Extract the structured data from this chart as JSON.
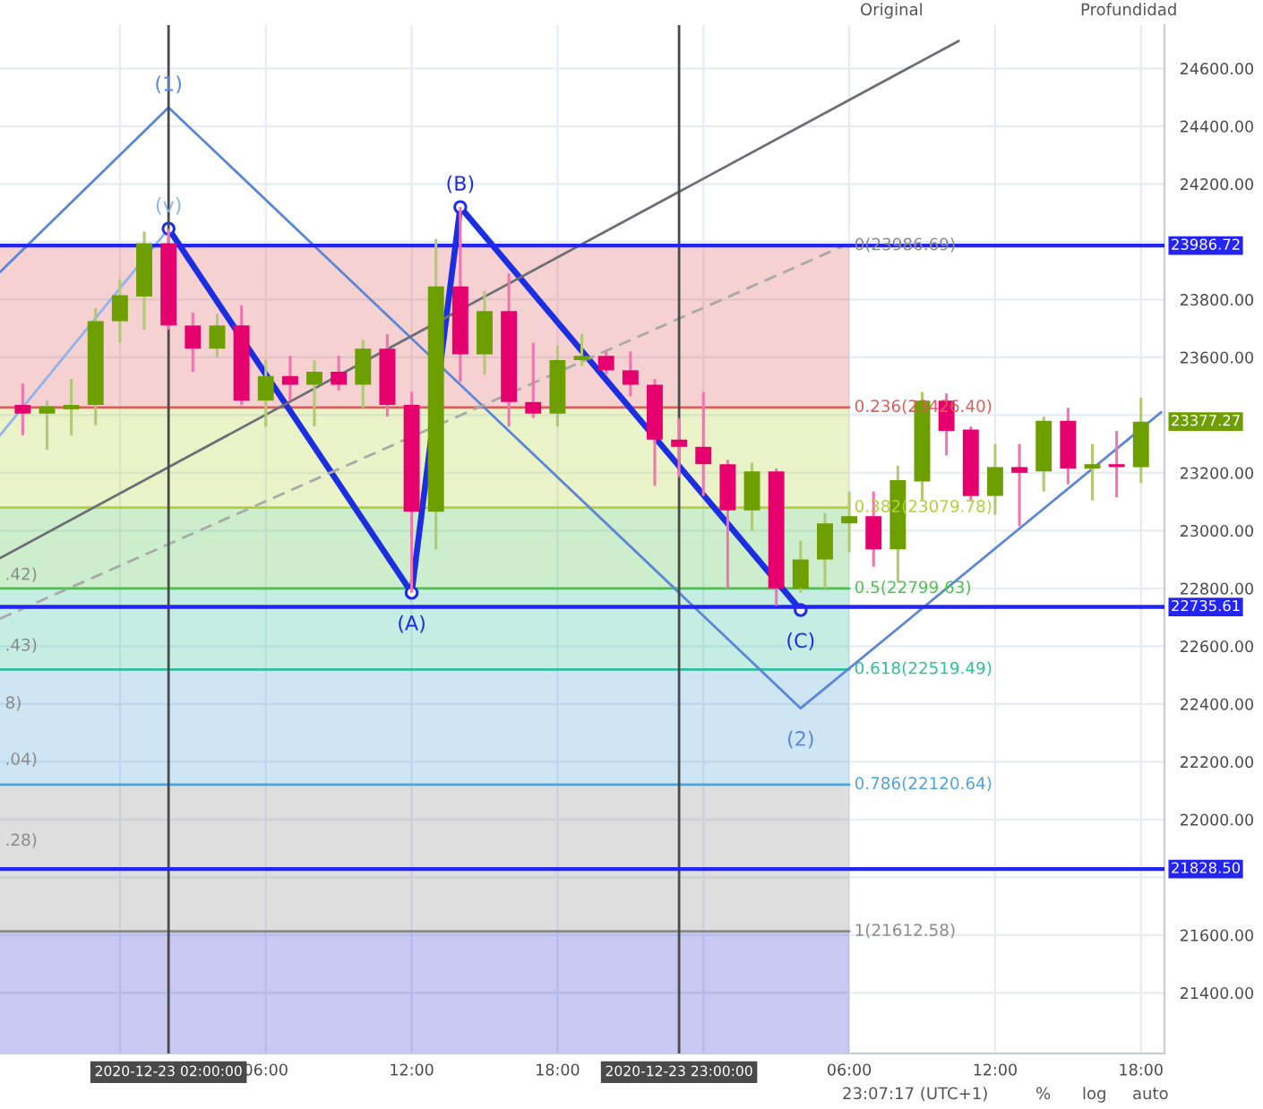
{
  "chart_data": {
    "type": "candlestick",
    "x": [
      "2020-12-22T20:00",
      "2020-12-22T21:00",
      "2020-12-22T22:00",
      "2020-12-22T23:00",
      "2020-12-23T00:00",
      "2020-12-23T01:00",
      "2020-12-23T02:00",
      "2020-12-23T03:00",
      "2020-12-23T04:00",
      "2020-12-23T05:00",
      "2020-12-23T06:00",
      "2020-12-23T07:00",
      "2020-12-23T08:00",
      "2020-12-23T09:00",
      "2020-12-23T10:00",
      "2020-12-23T11:00",
      "2020-12-23T12:00",
      "2020-12-23T13:00",
      "2020-12-23T14:00",
      "2020-12-23T15:00",
      "2020-12-23T16:00",
      "2020-12-23T17:00",
      "2020-12-23T18:00",
      "2020-12-23T19:00",
      "2020-12-23T20:00",
      "2020-12-23T21:00",
      "2020-12-23T22:00",
      "2020-12-23T23:00",
      "2020-12-24T00:00",
      "2020-12-24T01:00",
      "2020-12-24T02:00",
      "2020-12-24T03:00",
      "2020-12-24T04:00",
      "2020-12-24T05:00",
      "2020-12-24T06:00",
      "2020-12-24T07:00",
      "2020-12-24T08:00",
      "2020-12-24T09:00",
      "2020-12-24T10:00",
      "2020-12-24T11:00",
      "2020-12-24T12:00",
      "2020-12-24T13:00",
      "2020-12-24T14:00",
      "2020-12-24T15:00",
      "2020-12-24T16:00",
      "2020-12-24T17:00",
      "2020-12-24T18:00"
    ],
    "ohlc": [
      [
        23435,
        23510,
        23330,
        23405
      ],
      [
        23405,
        23450,
        23280,
        23430
      ],
      [
        23420,
        23525,
        23330,
        23435
      ],
      [
        23435,
        23770,
        23365,
        23725
      ],
      [
        23725,
        23870,
        23650,
        23815
      ],
      [
        23810,
        24035,
        23695,
        23995
      ],
      [
        23995,
        24045,
        23695,
        23710
      ],
      [
        23710,
        23755,
        23550,
        23630
      ],
      [
        23630,
        23750,
        23600,
        23710
      ],
      [
        23710,
        23780,
        23435,
        23450
      ],
      [
        23450,
        23590,
        23360,
        23535
      ],
      [
        23535,
        23605,
        23450,
        23505
      ],
      [
        23505,
        23590,
        23360,
        23550
      ],
      [
        23550,
        23605,
        23485,
        23505
      ],
      [
        23505,
        23660,
        23425,
        23630
      ],
      [
        23630,
        23680,
        23395,
        23435
      ],
      [
        23435,
        23480,
        22785,
        23065
      ],
      [
        23065,
        24010,
        22935,
        23845
      ],
      [
        23845,
        24120,
        23515,
        23610
      ],
      [
        23610,
        23830,
        23540,
        23760
      ],
      [
        23760,
        23890,
        23360,
        23445
      ],
      [
        23445,
        23650,
        23390,
        23405
      ],
      [
        23405,
        23640,
        23360,
        23590
      ],
      [
        23590,
        23680,
        23570,
        23605
      ],
      [
        23605,
        23620,
        23540,
        23555
      ],
      [
        23555,
        23620,
        23465,
        23505
      ],
      [
        23505,
        23525,
        23155,
        23315
      ],
      [
        23315,
        23390,
        23185,
        23290
      ],
      [
        23290,
        23480,
        23120,
        23230
      ],
      [
        23230,
        23245,
        22800,
        23070
      ],
      [
        23070,
        23235,
        23000,
        23205
      ],
      [
        23205,
        23215,
        22740,
        22800
      ],
      [
        22800,
        22965,
        22785,
        22900
      ],
      [
        22900,
        23060,
        22800,
        23025
      ],
      [
        23025,
        23135,
        22925,
        23050
      ],
      [
        23050,
        23135,
        22875,
        22935
      ],
      [
        22935,
        23225,
        22820,
        23175
      ],
      [
        23170,
        23480,
        23105,
        23450
      ],
      [
        23450,
        23475,
        23260,
        23345
      ],
      [
        23350,
        23360,
        23105,
        23120
      ],
      [
        23120,
        23300,
        23055,
        23220
      ],
      [
        23220,
        23300,
        23015,
        23200
      ],
      [
        23205,
        23395,
        23135,
        23380
      ],
      [
        23380,
        23425,
        23160,
        23215
      ],
      [
        23215,
        23300,
        23105,
        23230
      ],
      [
        23230,
        23345,
        23115,
        23220
      ],
      [
        23220,
        23460,
        23165,
        23377.27
      ]
    ],
    "colors": [
      "#e6006e",
      "#6e9f00",
      "#6e9f00",
      "#6e9f00",
      "#6e9f00",
      "#6e9f00",
      "#e6006e",
      "#e6006e",
      "#6e9f00",
      "#e6006e",
      "#6e9f00",
      "#e6006e",
      "#6e9f00",
      "#e6006e",
      "#6e9f00",
      "#e6006e",
      "#e6006e",
      "#6e9f00",
      "#e6006e",
      "#6e9f00",
      "#e6006e",
      "#e6006e",
      "#6e9f00",
      "#6e9f00",
      "#e6006e",
      "#e6006e",
      "#e6006e",
      "#e6006e",
      "#e6006e",
      "#e6006e",
      "#6e9f00",
      "#e6006e",
      "#6e9f00",
      "#6e9f00",
      "#6e9f00",
      "#e6006e",
      "#6e9f00",
      "#6e9f00",
      "#e6006e",
      "#e6006e",
      "#6e9f00",
      "#e6006e",
      "#6e9f00",
      "#e6006e",
      "#6e9f00",
      "#e6006e",
      "#6e9f00"
    ],
    "series": [
      {
        "type": "line",
        "x": [
          "2020-12-22T19:04",
          "2020-12-23T02:00"
        ],
        "values": [
          23330,
          24045
        ],
        "color": "#8fb4ec",
        "line_style": "solid",
        "marker": "none"
      },
      {
        "type": "line",
        "x": [
          "2020-12-22T19:04",
          "2020-12-23T02:00",
          "2020-12-24T04:00",
          "2020-12-24T18:50"
        ],
        "values": [
          23895,
          24465,
          22385,
          23410
        ],
        "color": "#5b86d6",
        "line_style": "solid",
        "marker": "none"
      },
      {
        "type": "line",
        "x": [
          "2020-12-23T02:00",
          "2020-12-23T12:00",
          "2020-12-23T14:00",
          "2020-12-24T04:00"
        ],
        "values": [
          24045,
          22785,
          24120,
          22725
        ],
        "color": "#1c2fe0",
        "line_style": "solid",
        "marker": "circle"
      },
      {
        "type": "line",
        "x": [
          "2020-12-22T19:04",
          "2020-12-24T10:30"
        ],
        "values": [
          22905,
          24695
        ],
        "color": "#6b6f75",
        "line_style": "solid",
        "marker": "none"
      },
      {
        "type": "line",
        "x": [
          "2020-12-22T19:04",
          "2020-12-24T05:45"
        ],
        "values": [
          22695,
          23985
        ],
        "color": "#a8a8a8",
        "line_style": "dashed",
        "marker": "none"
      }
    ],
    "xlim": [
      "2020-12-22T19:04",
      "2020-12-24T18:58"
    ],
    "xticks": [
      {
        "value": "2020-12-23T00:00",
        "label": null
      },
      {
        "value": "2020-12-23T06:00",
        "label": "06:00"
      },
      {
        "value": "2020-12-23T12:00",
        "label": "12:00"
      },
      {
        "value": "2020-12-23T18:00",
        "label": "18:00"
      },
      {
        "value": "2020-12-24T00:00",
        "label": null
      },
      {
        "value": "2020-12-24T06:00",
        "label": "06:00"
      },
      {
        "value": "2020-12-24T12:00",
        "label": "12:00"
      },
      {
        "value": "2020-12-24T18:00",
        "label": "18:00"
      }
    ],
    "ylim": [
      21190,
      24750
    ],
    "yticks": [
      {
        "value": 21400,
        "label": "21400.00"
      },
      {
        "value": 21600,
        "label": "21600.00"
      },
      {
        "value": 21800,
        "label": null
      },
      {
        "value": 22000,
        "label": "22000.00"
      },
      {
        "value": 22200,
        "label": "22200.00"
      },
      {
        "value": 22400,
        "label": "22400.00"
      },
      {
        "value": 22600,
        "label": "22600.00"
      },
      {
        "value": 22800,
        "label": "22800.00"
      },
      {
        "value": 23000,
        "label": "23000.00"
      },
      {
        "value": 23200,
        "label": "23200.00"
      },
      {
        "value": 23400,
        "label": null
      },
      {
        "value": 23600,
        "label": "23600.00"
      },
      {
        "value": 23800,
        "label": "23800.00"
      },
      {
        "value": 24000,
        "label": null
      },
      {
        "value": 24200,
        "label": "24200.00"
      },
      {
        "value": 24400,
        "label": "24400.00"
      },
      {
        "value": 24600,
        "label": "24600.00"
      }
    ],
    "grid": true,
    "ref_lines": [
      {
        "axis": "x",
        "value": "2020-12-23T02:00",
        "label": "2020-12-23 02:00:00",
        "color": "#4a4a4a"
      },
      {
        "axis": "x",
        "value": "2020-12-23T23:00",
        "label": "2020-12-23 23:00:00",
        "color": "#4a4a4a"
      },
      {
        "axis": "y",
        "value": 23986.72,
        "label": "23986.72",
        "color": "#2424f5"
      },
      {
        "axis": "y",
        "value": 22735.61,
        "label": "22735.61",
        "color": "#2424f5"
      },
      {
        "axis": "y",
        "value": 21828.5,
        "label": "21828.50",
        "color": "#2424f5"
      }
    ],
    "bands": [
      {
        "axis": "y",
        "from": 23426.4,
        "to": 23986.69,
        "color": "#e05a5a"
      },
      {
        "axis": "y",
        "from": 23079.78,
        "to": 23426.4,
        "color": "#b3cf3a"
      },
      {
        "axis": "y",
        "from": 22799.63,
        "to": 23079.78,
        "color": "#4cc24c"
      },
      {
        "axis": "y",
        "from": 22519.49,
        "to": 22799.63,
        "color": "#2fbf9a"
      },
      {
        "axis": "y",
        "from": 22120.64,
        "to": 22519.49,
        "color": "#4fa3d8"
      },
      {
        "axis": "y",
        "from": 21612.58,
        "to": 22120.64,
        "color": "#8a8a8a"
      },
      {
        "axis": "y",
        "from": 21190,
        "to": 21612.58,
        "color": "#3a3ad0"
      }
    ],
    "annotations": [
      {
        "text": "(1)",
        "x": "2020-12-23T02:00",
        "y": 24465
      },
      {
        "text": "(v)",
        "x": "2020-12-23T02:00",
        "y": 24045
      },
      {
        "text": "(A)",
        "x": "2020-12-23T12:00",
        "y": 22785
      },
      {
        "text": "(B)",
        "x": "2020-12-23T14:00",
        "y": 24120
      },
      {
        "text": "(C)",
        "x": "2020-12-24T04:00",
        "y": 22725
      },
      {
        "text": "(2)",
        "x": "2020-12-24T04:00",
        "y": 22385
      },
      {
        "text": "0(23986.69)",
        "x": "2020-12-24T06:00",
        "y": 23986.69
      },
      {
        "text": "0.236(23426.40)",
        "x": "2020-12-24T06:00",
        "y": 23426.4
      },
      {
        "text": "0.382(23079.78)",
        "x": "2020-12-24T06:00",
        "y": 23079.78
      },
      {
        "text": "0.5(22799.63)",
        "x": "2020-12-24T06:00",
        "y": 22799.63
      },
      {
        "text": "0.618(22519.49)",
        "x": "2020-12-24T06:00",
        "y": 22519.49
      },
      {
        "text": "0.786(22120.64)",
        "x": "2020-12-24T06:00",
        "y": 22120.64
      },
      {
        "text": "1(21612.58)",
        "x": "2020-12-24T06:00",
        "y": 21612.58
      },
      {
        "text": ".42)",
        "x": "2020-12-22T19:04",
        "y": 22845
      },
      {
        "text": ".43)",
        "x": "2020-12-22T19:04",
        "y": 22600
      },
      {
        "text": "8)",
        "x": "2020-12-22T19:04",
        "y": 22400
      },
      {
        "text": ".04)",
        "x": "2020-12-22T19:04",
        "y": 22205
      },
      {
        "text": ".28)",
        "x": "2020-12-22T19:04",
        "y": 21925
      },
      {
        "text": "23377.27",
        "x": "2020-12-24T18:00",
        "y": 23377.27
      },
      "Original",
      "Profundidad",
      "23:07:17 (UTC+1)",
      "%",
      "log",
      "auto"
    ]
  }
}
